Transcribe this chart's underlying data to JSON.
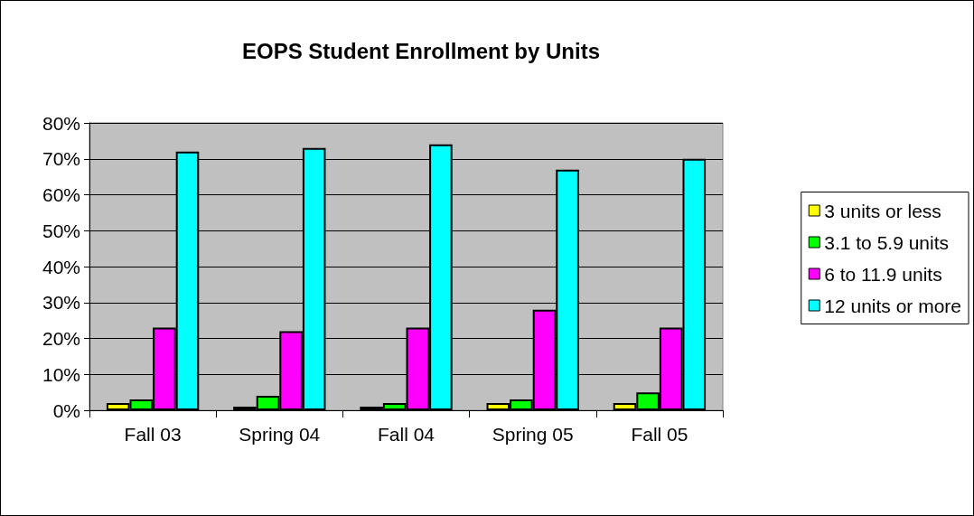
{
  "chart_data": {
    "type": "bar",
    "title": "EOPS Student Enrollment by Units",
    "categories": [
      "Fall 03",
      "Spring 04",
      "Fall 04",
      "Spring 05",
      "Fall 05"
    ],
    "series": [
      {
        "name": "3 units or less",
        "color": "#ffff00",
        "values": [
          2,
          1,
          1,
          2,
          2
        ]
      },
      {
        "name": "3.1 to 5.9 units",
        "color": "#00ff00",
        "values": [
          3,
          4,
          2,
          3,
          5
        ]
      },
      {
        "name": "6 to 11.9 units",
        "color": "#ff00ff",
        "values": [
          23,
          22,
          23,
          28,
          23
        ]
      },
      {
        "name": "12 units or more",
        "color": "#00ffff",
        "values": [
          72,
          73,
          74,
          67,
          70
        ]
      }
    ],
    "ylim": [
      0,
      80
    ],
    "yticks": [
      {
        "value": 0,
        "label": "0%"
      },
      {
        "value": 10,
        "label": "10%"
      },
      {
        "value": 20,
        "label": "20%"
      },
      {
        "value": 30,
        "label": "30%"
      },
      {
        "value": 40,
        "label": "40%"
      },
      {
        "value": 50,
        "label": "50%"
      },
      {
        "value": 60,
        "label": "60%"
      },
      {
        "value": 70,
        "label": "70%"
      },
      {
        "value": 80,
        "label": "80%"
      }
    ],
    "grid": "y",
    "legend": "right"
  }
}
